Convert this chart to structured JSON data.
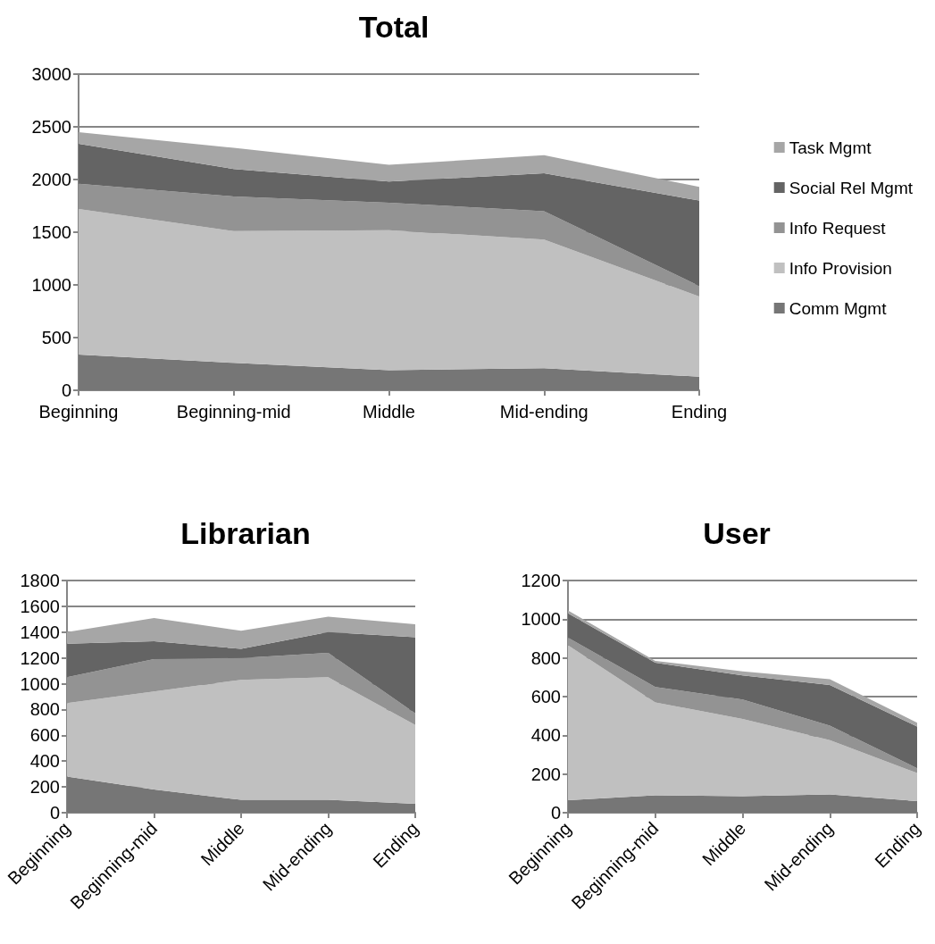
{
  "chart_data": [
    {
      "type": "area",
      "title": "Total",
      "stacked": true,
      "categories": [
        "Beginning",
        "Beginning-mid",
        "Middle",
        "Mid-ending",
        "Ending"
      ],
      "ylim": [
        0,
        3000
      ],
      "yticks": [
        0,
        500,
        1000,
        1500,
        2000,
        2500,
        3000
      ],
      "grid": "y",
      "legend": "right",
      "series": [
        {
          "name": "Comm Mgmt",
          "color": "#767676",
          "values": [
            340,
            260,
            190,
            210,
            130
          ]
        },
        {
          "name": "Info Provision",
          "color": "#c0c0c0",
          "values": [
            1380,
            1250,
            1330,
            1220,
            760
          ]
        },
        {
          "name": "Info Request",
          "color": "#939393",
          "values": [
            240,
            330,
            260,
            270,
            100
          ]
        },
        {
          "name": "Social Rel Mgmt",
          "color": "#646464",
          "values": [
            380,
            260,
            200,
            360,
            810
          ]
        },
        {
          "name": "Task Mgmt",
          "color": "#a6a6a6",
          "values": [
            110,
            200,
            160,
            170,
            130
          ]
        }
      ]
    },
    {
      "type": "area",
      "title": "Librarian",
      "stacked": true,
      "categories": [
        "Beginning",
        "Beginning-mid",
        "Middle",
        "Mid-ending",
        "Ending"
      ],
      "ylim": [
        0,
        1800
      ],
      "yticks": [
        0,
        200,
        400,
        600,
        800,
        1000,
        1200,
        1400,
        1600,
        1800
      ],
      "grid": "y",
      "legend": false,
      "series": [
        {
          "color": "#767676",
          "values": [
            280,
            180,
            100,
            100,
            70
          ]
        },
        {
          "color": "#c0c0c0",
          "values": [
            570,
            760,
            930,
            950,
            610
          ]
        },
        {
          "color": "#939393",
          "values": [
            200,
            250,
            170,
            190,
            90
          ]
        },
        {
          "color": "#646464",
          "values": [
            260,
            140,
            70,
            160,
            590
          ]
        },
        {
          "color": "#a6a6a6",
          "values": [
            90,
            180,
            140,
            120,
            100
          ]
        }
      ]
    },
    {
      "type": "area",
      "title": "User",
      "stacked": true,
      "categories": [
        "Beginning",
        "Beginning-mid",
        "Middle",
        "Mid-ending",
        "Ending"
      ],
      "ylim": [
        0,
        1200
      ],
      "yticks": [
        0,
        200,
        400,
        600,
        800,
        1000,
        1200
      ],
      "grid": "y",
      "legend": false,
      "series": [
        {
          "color": "#767676",
          "values": [
            65,
            90,
            85,
            95,
            60
          ]
        },
        {
          "color": "#c0c0c0",
          "values": [
            800,
            480,
            400,
            280,
            145
          ]
        },
        {
          "color": "#939393",
          "values": [
            40,
            80,
            100,
            75,
            25
          ]
        },
        {
          "color": "#646464",
          "values": [
            125,
            125,
            125,
            210,
            215
          ]
        },
        {
          "color": "#a6a6a6",
          "values": [
            15,
            10,
            20,
            30,
            20
          ]
        }
      ]
    }
  ]
}
